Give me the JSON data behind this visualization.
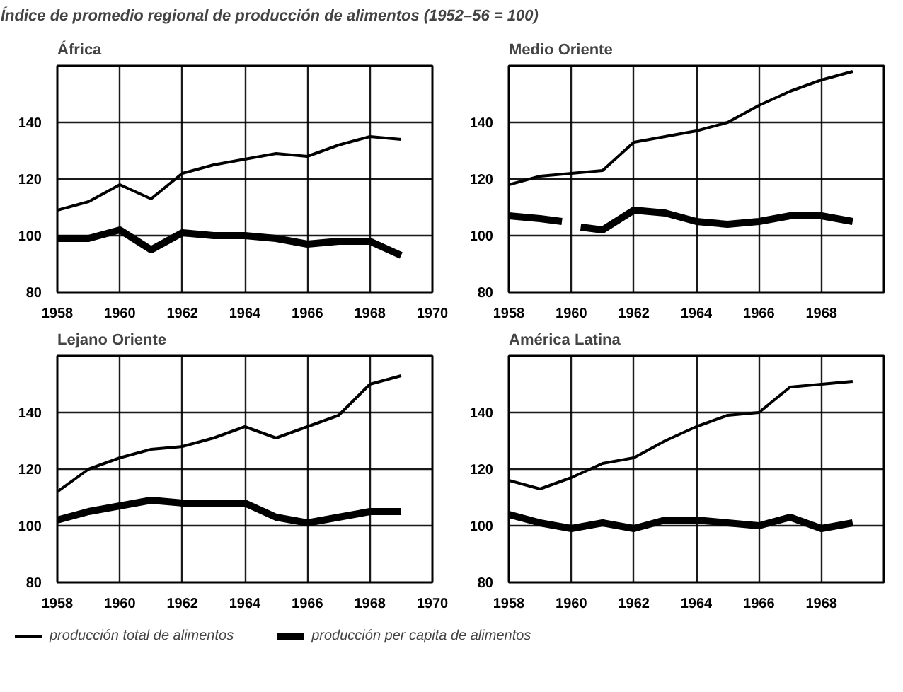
{
  "chart_data": [
    {
      "type": "line",
      "title": "Índice de promedio regional de producción de alimentos (1952–56 = 100)",
      "subtitle": "África",
      "x": [
        1958,
        1959,
        1960,
        1961,
        1962,
        1963,
        1964,
        1965,
        1966,
        1967,
        1968,
        1969
      ],
      "xlim": [
        1958,
        1970
      ],
      "xticks": [
        1958,
        1960,
        1962,
        1964,
        1966,
        1968,
        1970
      ],
      "ylim": [
        80,
        160
      ],
      "yticks": [
        80,
        100,
        120,
        140
      ],
      "grid": true,
      "series": [
        {
          "color": "#000000",
          "values": [
            109,
            112,
            118,
            113,
            122,
            125,
            127,
            129,
            128,
            132,
            135,
            134
          ]
        },
        {
          "color": "#000000",
          "values": [
            99,
            99,
            102,
            95,
            101,
            100,
            100,
            99,
            97,
            98,
            98,
            93
          ]
        }
      ]
    },
    {
      "type": "line",
      "subtitle": "Medio Oriente",
      "x": [
        1958,
        1959,
        1960,
        1961,
        1962,
        1963,
        1964,
        1965,
        1966,
        1967,
        1968,
        1969
      ],
      "xlim": [
        1958,
        1970
      ],
      "xticks": [
        1958,
        1960,
        1962,
        1964,
        1966,
        1968
      ],
      "ylim": [
        80,
        160
      ],
      "yticks": [
        80,
        100,
        120,
        140
      ],
      "grid": true,
      "series": [
        {
          "color": "#000000",
          "values": [
            118,
            121,
            122,
            123,
            133,
            135,
            137,
            140,
            146,
            151,
            155,
            158
          ]
        },
        {
          "color": "#000000",
          "x": [
            1958,
            1959,
            1959.7,
            1960,
            1960.3,
            1961,
            1962,
            1963,
            1964,
            1965,
            1966,
            1967,
            1968,
            1969
          ],
          "values": [
            107,
            106,
            105,
            null,
            103,
            102,
            109,
            108,
            105,
            104,
            105,
            107,
            107,
            105
          ]
        }
      ]
    },
    {
      "type": "line",
      "subtitle": "Lejano Oriente",
      "x": [
        1958,
        1959,
        1960,
        1961,
        1962,
        1963,
        1964,
        1965,
        1966,
        1967,
        1968,
        1969
      ],
      "xlim": [
        1958,
        1970
      ],
      "xticks": [
        1958,
        1960,
        1962,
        1964,
        1966,
        1968,
        1970
      ],
      "ylim": [
        80,
        160
      ],
      "yticks": [
        80,
        100,
        120,
        140
      ],
      "grid": true,
      "legend": "bottom",
      "series": [
        {
          "name": "producción total de alimentos",
          "color": "#000000",
          "values": [
            112,
            120,
            124,
            127,
            128,
            131,
            135,
            131,
            135,
            139,
            150,
            153
          ]
        },
        {
          "name": "producción per capita de alimentos",
          "color": "#000000",
          "values": [
            102,
            105,
            107,
            109,
            108,
            108,
            108,
            103,
            101,
            103,
            105,
            105
          ]
        }
      ]
    },
    {
      "type": "line",
      "subtitle": "América Latina",
      "x": [
        1958,
        1959,
        1960,
        1961,
        1962,
        1963,
        1964,
        1965,
        1966,
        1967,
        1968,
        1969
      ],
      "xlim": [
        1958,
        1970
      ],
      "xticks": [
        1958,
        1960,
        1962,
        1964,
        1966,
        1968
      ],
      "ylim": [
        80,
        160
      ],
      "yticks": [
        80,
        100,
        120,
        140
      ],
      "grid": true,
      "series": [
        {
          "color": "#000000",
          "values": [
            116,
            113,
            117,
            122,
            124,
            130,
            135,
            139,
            140,
            149,
            150,
            151
          ]
        },
        {
          "color": "#000000",
          "values": [
            104,
            101,
            99,
            101,
            99,
            102,
            102,
            101,
            100,
            103,
            99,
            101
          ]
        }
      ]
    }
  ]
}
